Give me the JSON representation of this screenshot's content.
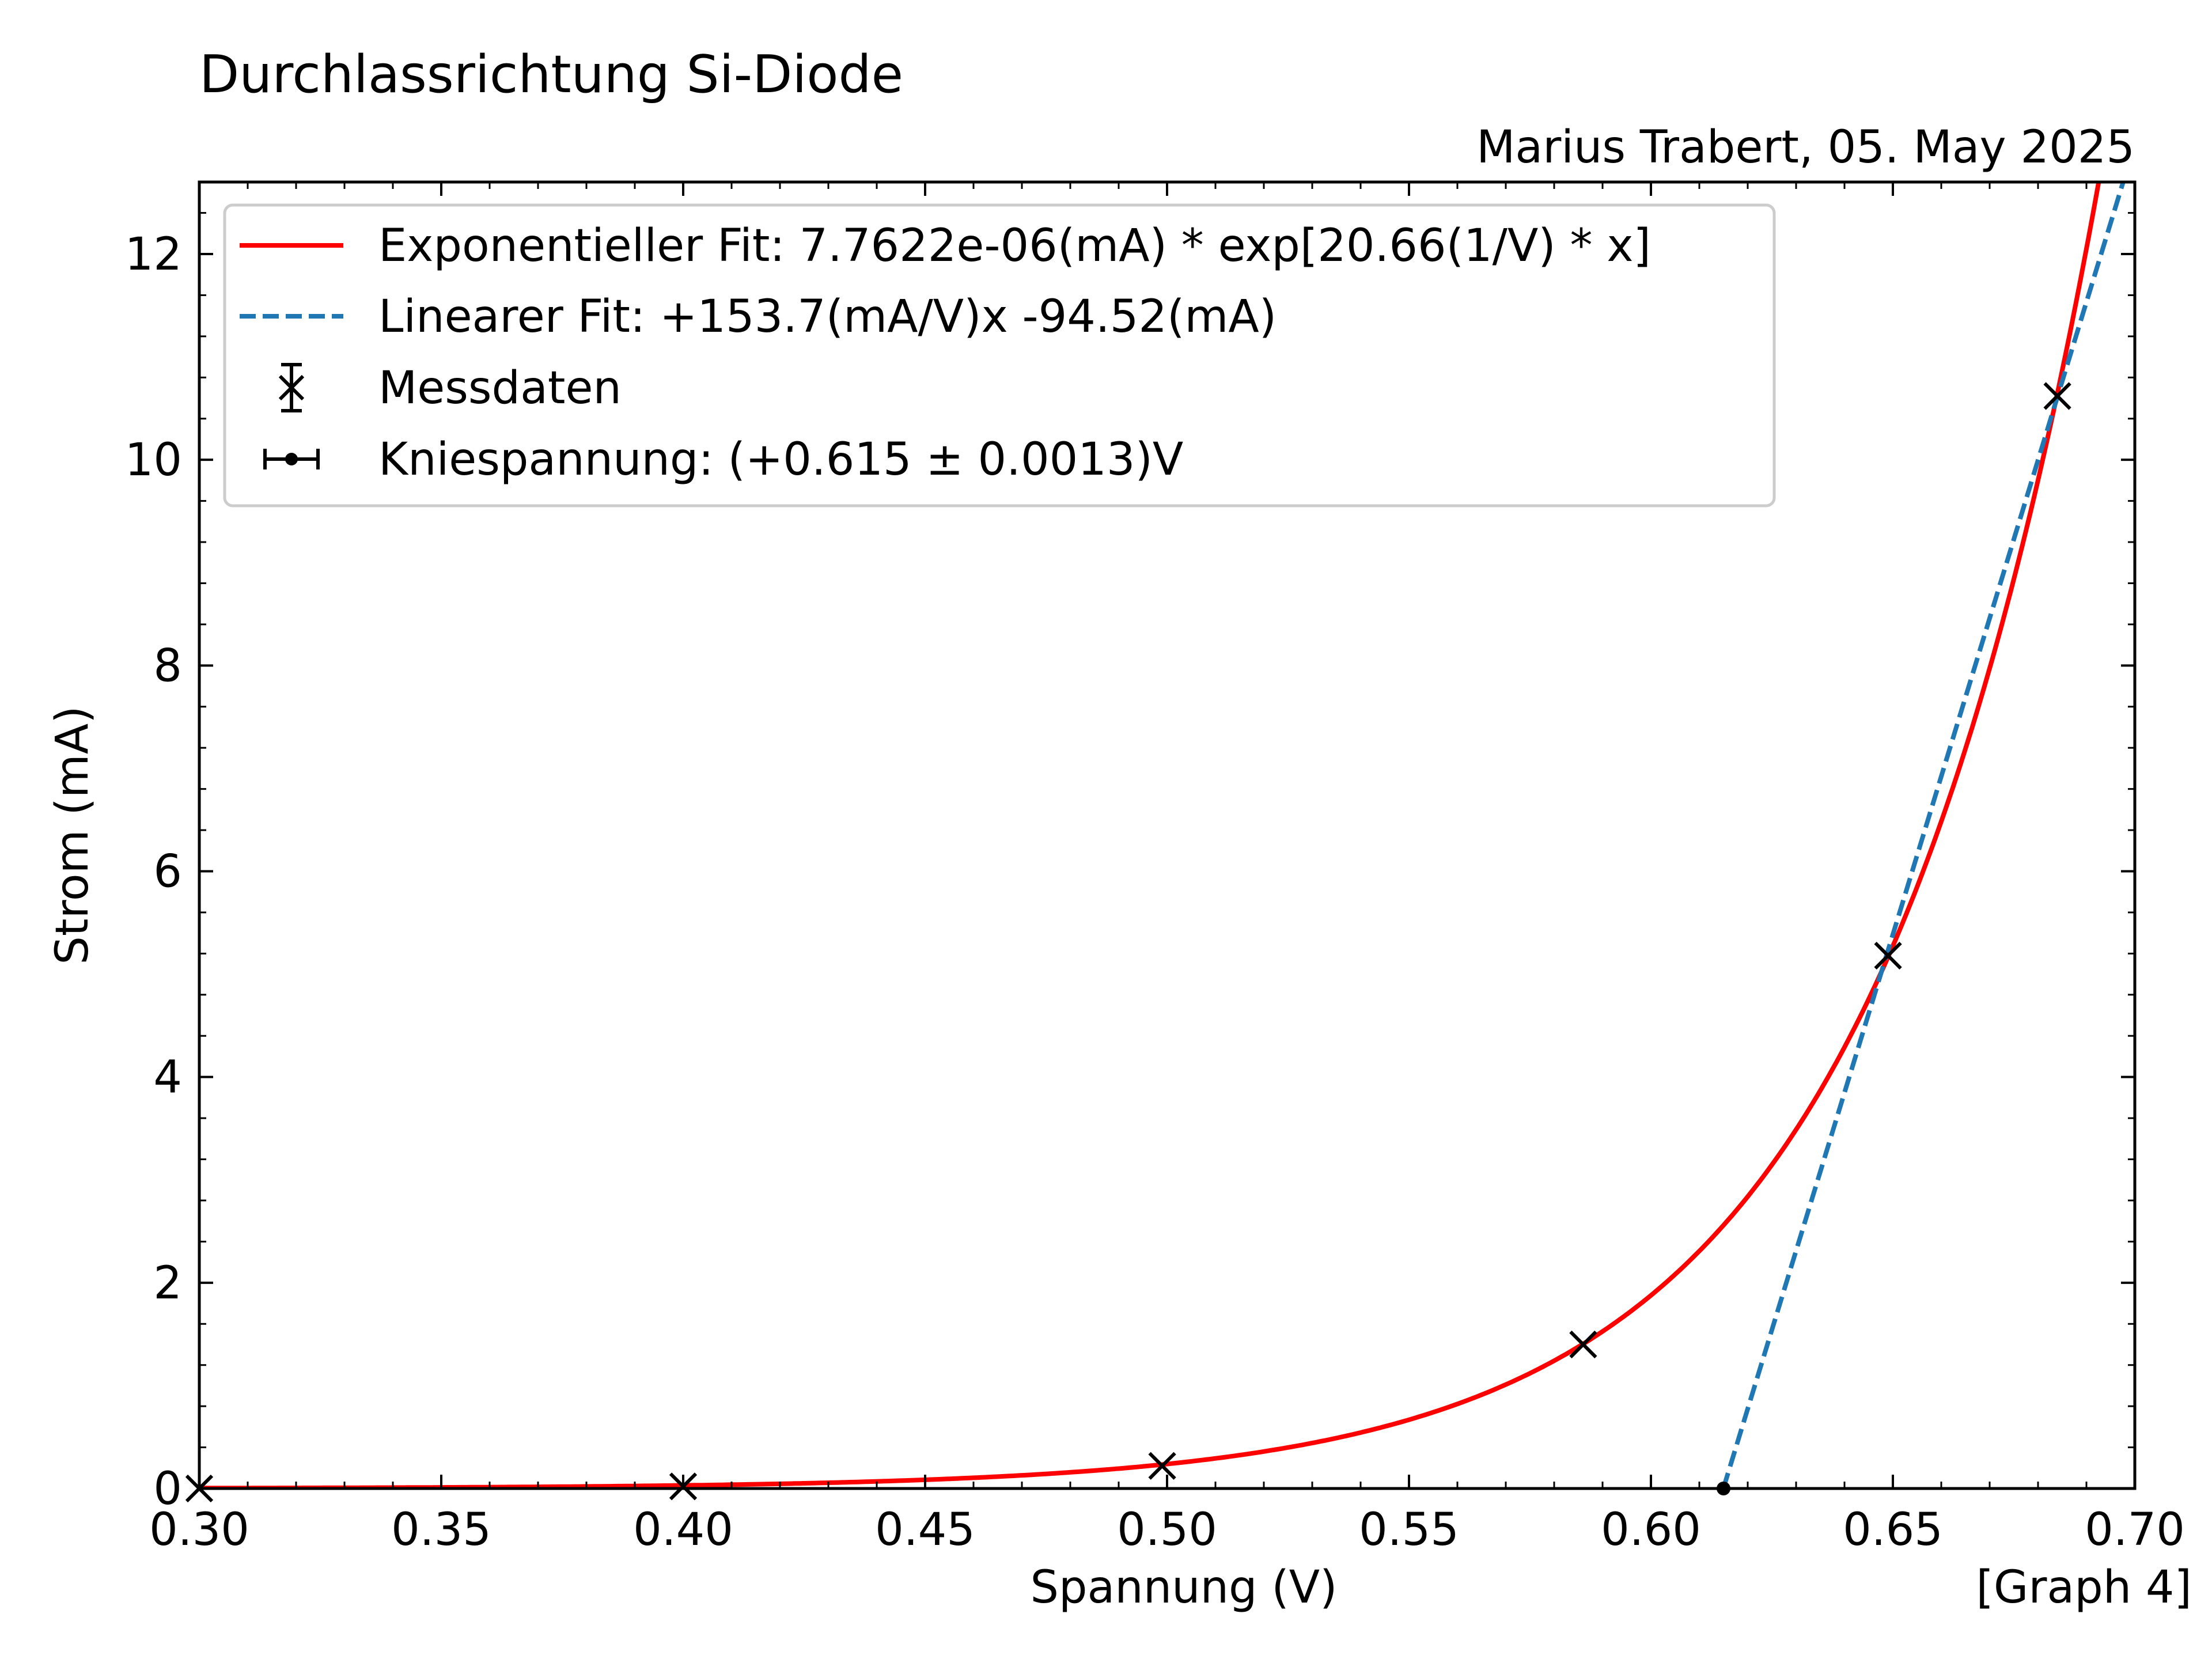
{
  "chart_data": {
    "type": "scatter",
    "title": "Durchlassrichtung Si-Diode",
    "subtitle": "Marius Trabert, 05. May 2025",
    "xlabel": "Spannung (V)",
    "ylabel": "Strom (mA)",
    "corner_label": "[Graph 4]",
    "xlim": [
      0.3,
      0.7
    ],
    "ylim": [
      0,
      12.7
    ],
    "xticks": [
      "0.30",
      "0.35",
      "0.40",
      "0.45",
      "0.50",
      "0.55",
      "0.60",
      "0.65",
      "0.70"
    ],
    "yticks": [
      "0",
      "2",
      "4",
      "6",
      "8",
      "10",
      "12"
    ],
    "legend_position": "top-left",
    "legend": [
      {
        "label": "Exponentieller Fit: 7.7622e-06(mA) * exp[20.66(1/V) * x]",
        "style": "red-line"
      },
      {
        "label": "Linearer Fit:  +153.7(mA/V)x -94.52(mA)",
        "style": "blue-dashed"
      },
      {
        "label": "Messdaten",
        "style": "x-marker"
      },
      {
        "label": "Kniespannung: (+0.615 ± 0.0013)V",
        "style": "dot-errorbar"
      }
    ],
    "series": [
      {
        "name": "Messdaten",
        "kind": "scatter",
        "x": [
          0.3,
          0.4,
          0.499,
          0.586,
          0.649,
          0.684
        ],
        "y": [
          0.0,
          0.02,
          0.22,
          1.4,
          5.18,
          10.62
        ]
      },
      {
        "name": "Exponentieller Fit",
        "kind": "line",
        "a": 7.7622e-06,
        "b": 20.66
      },
      {
        "name": "Linearer Fit",
        "kind": "line",
        "slope": 153.7,
        "intercept": -94.52
      },
      {
        "name": "Kniespannung",
        "kind": "point",
        "x": 0.615,
        "y": 0,
        "xerr": 0.0013
      }
    ],
    "colors": {
      "exp_fit": "#ff0000",
      "lin_fit": "#1f77b4",
      "markers": "#000000"
    }
  }
}
